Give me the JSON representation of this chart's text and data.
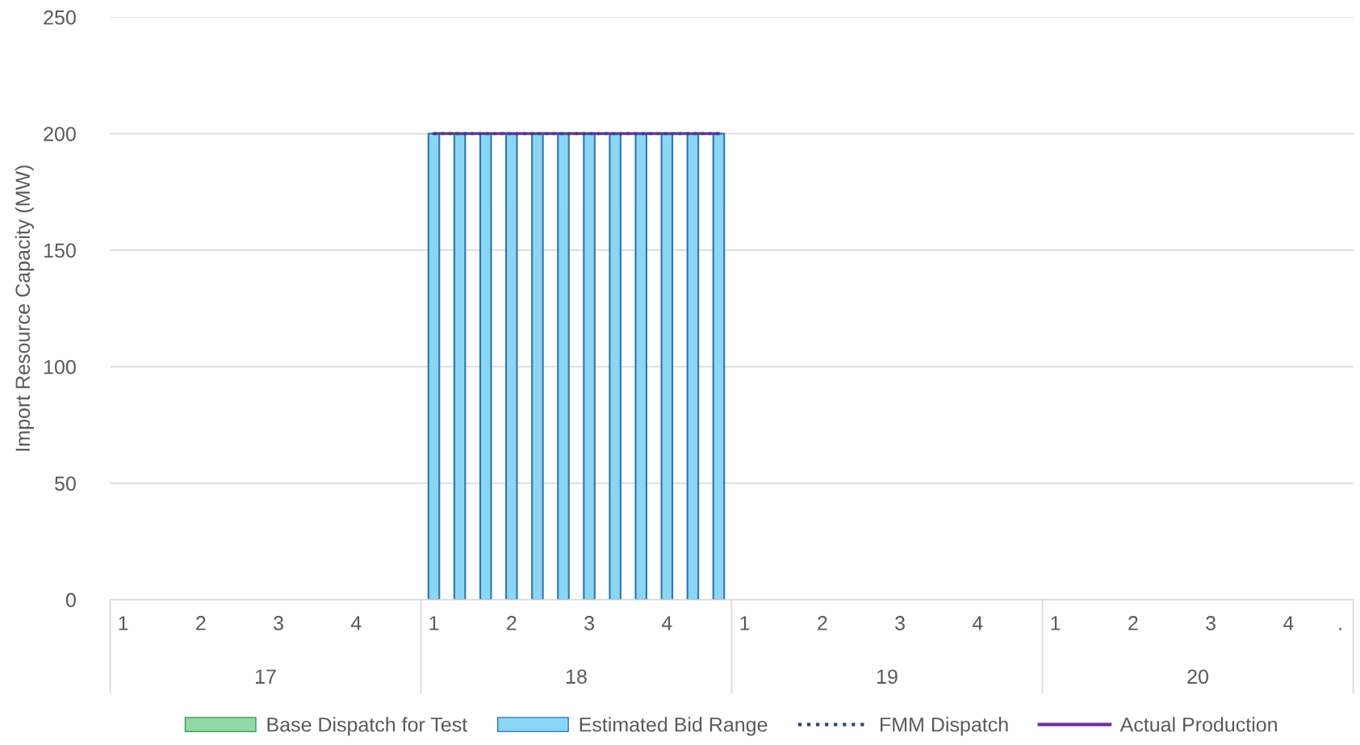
{
  "chart_data": {
    "type": "bar",
    "ylabel": "Import Resource Capacity (MW)",
    "categories": [
      "1",
      null,
      null,
      "2",
      null,
      null,
      "3",
      null,
      null,
      "4",
      null,
      null,
      "1",
      null,
      null,
      "2",
      null,
      null,
      "3",
      null,
      null,
      "4",
      null,
      null,
      "1",
      null,
      null,
      "2",
      null,
      null,
      "3",
      null,
      null,
      "4",
      null,
      null,
      "1",
      null,
      null,
      "2",
      null,
      null,
      "3",
      null,
      null,
      "4",
      null,
      "."
    ],
    "series": [
      {
        "name": "Base Dispatch for Test",
        "color": "#92d8a8",
        "values": [
          null,
          null,
          null,
          null,
          null,
          null,
          null,
          null,
          null,
          null,
          null,
          null,
          null,
          null,
          null,
          null,
          null,
          null,
          null,
          null,
          null,
          null,
          null,
          null,
          null,
          null,
          null,
          null,
          null,
          null,
          null,
          null,
          null,
          null,
          null,
          null,
          null,
          null,
          null,
          null,
          null,
          null,
          null,
          null,
          null,
          null,
          null,
          null
        ]
      },
      {
        "name": "Estimated Bid Range",
        "color": "#8ad6f5",
        "values": [
          null,
          null,
          null,
          null,
          null,
          null,
          null,
          null,
          null,
          null,
          null,
          null,
          200,
          200,
          200,
          200,
          200,
          200,
          200,
          200,
          200,
          200,
          200,
          200,
          null,
          null,
          null,
          null,
          null,
          null,
          null,
          null,
          null,
          null,
          null,
          null,
          null,
          null,
          null,
          null,
          null,
          null,
          null,
          null,
          null,
          null,
          null,
          null
        ]
      },
      {
        "name": "FMM Dispatch",
        "color": "#1f4e79",
        "type": "line",
        "line_style": "dotted",
        "values": [
          null,
          null,
          null,
          null,
          null,
          null,
          null,
          null,
          null,
          null,
          null,
          null,
          200,
          200,
          200,
          200,
          200,
          200,
          200,
          200,
          200,
          200,
          200,
          200,
          null,
          null,
          null,
          null,
          null,
          null,
          null,
          null,
          null,
          null,
          null,
          null,
          null,
          null,
          null,
          null,
          null,
          null,
          null,
          null,
          null,
          null,
          null,
          null
        ]
      },
      {
        "name": "Actual Production",
        "color": "#7030a0",
        "type": "line",
        "line_style": "solid",
        "values": [
          null,
          null,
          null,
          null,
          null,
          null,
          null,
          null,
          null,
          null,
          null,
          null,
          200,
          200,
          200,
          200,
          200,
          200,
          200,
          200,
          200,
          200,
          200,
          200,
          null,
          null,
          null,
          null,
          null,
          null,
          null,
          null,
          null,
          null,
          null,
          null,
          null,
          null,
          null,
          null,
          null,
          null,
          null,
          null,
          null,
          null,
          null,
          null
        ]
      }
    ],
    "annotations": [
      "17",
      "18",
      "19",
      "20"
    ],
    "ylim": [
      0,
      250
    ],
    "yticks": [
      0,
      50,
      100,
      150,
      200,
      250
    ],
    "grid": "y",
    "legend": "bottom"
  }
}
